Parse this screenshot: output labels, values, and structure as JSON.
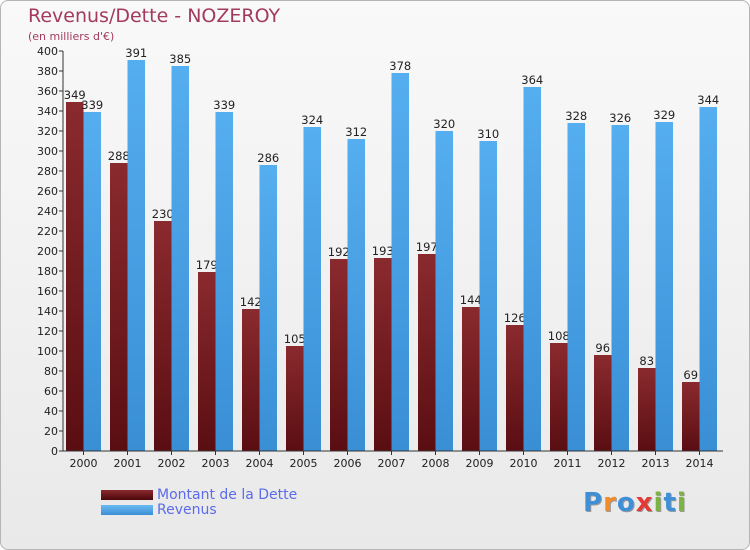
{
  "header": {
    "title": "Revenus/Dette - NOZEROY",
    "subtitle": "(en milliers d'€)"
  },
  "colors": {
    "dette": "#6e1a1e",
    "revenus": "#49a3e6",
    "axis_text": "#222222",
    "title": "#a23a5f",
    "legend_text": "#5b6bea"
  },
  "chart_data": {
    "type": "bar",
    "categories": [
      "2000",
      "2001",
      "2002",
      "2003",
      "2004",
      "2005",
      "2006",
      "2007",
      "2008",
      "2009",
      "2010",
      "2011",
      "2012",
      "2013",
      "2014"
    ],
    "series": [
      {
        "name": "Montant de la Dette",
        "values": [
          349,
          288,
          230,
          179,
          142,
          105,
          192,
          193,
          197,
          144,
          126,
          108,
          96,
          83,
          69
        ]
      },
      {
        "name": "Revenus",
        "values": [
          339,
          391,
          385,
          339,
          286,
          324,
          312,
          378,
          320,
          310,
          364,
          328,
          326,
          329,
          344
        ]
      }
    ],
    "ylim": [
      0,
      400
    ],
    "ytick_step": 20,
    "grid": false,
    "legend_position": "bottom-left"
  },
  "logo": {
    "letters": [
      "P",
      "r",
      "o",
      "x",
      "i",
      "t",
      "i"
    ],
    "colors": [
      "#3f8fd6",
      "#f28c28",
      "#3f8fd6",
      "#e53935",
      "#7cb342",
      "#3f8fd6",
      "#7cb342"
    ]
  }
}
